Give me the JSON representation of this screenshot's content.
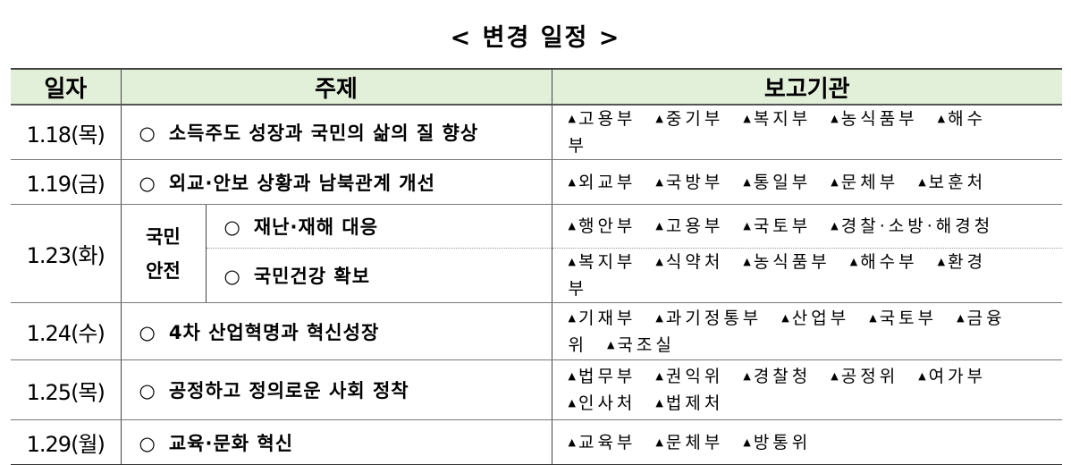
{
  "title": "< 변경 일정 >",
  "headers": {
    "date": "일자",
    "topic": "주제",
    "agencies": "보고기관"
  },
  "bullet": "○",
  "rows": [
    {
      "date": "1.18(목)",
      "topic": "소득주도 성장과 국민의 삶의 질 향상",
      "agencies": [
        "고용부",
        "중기부",
        "복지부",
        "농식품부",
        "해수부"
      ]
    },
    {
      "date": "1.19(금)",
      "topic": "외교·안보 상황과 남북관계 개선",
      "agencies": [
        "외교부",
        "국방부",
        "통일부",
        "문체부",
        "보훈처"
      ]
    },
    {
      "date": "1.23(화)",
      "category": "국민 안전",
      "subrows": [
        {
          "topic": "재난·재해 대응",
          "agencies": [
            "행안부",
            "고용부",
            "국토부",
            "경찰·소방·해경청"
          ]
        },
        {
          "topic": "국민건강 확보",
          "agencies": [
            "복지부",
            "식약처",
            "농식품부",
            "해수부",
            "환경부"
          ]
        }
      ]
    },
    {
      "date": "1.24(수)",
      "topic": "4차 산업혁명과 혁신성장",
      "agencies": [
        "기재부",
        "과기정통부",
        "산업부",
        "국토부",
        "금융위",
        "국조실"
      ]
    },
    {
      "date": "1.25(목)",
      "topic": "공정하고 정의로운 사회 정착",
      "agencies": [
        "법무부",
        "권익위",
        "경찰청",
        "공정위",
        "여가부",
        "인사처",
        "법제처"
      ]
    },
    {
      "date": "1.29(월)",
      "topic": "교육·문화 혁신",
      "agencies": [
        "교육부",
        "문체부",
        "방통위"
      ]
    }
  ],
  "colors": {
    "header_bg": "#e2efd9"
  }
}
